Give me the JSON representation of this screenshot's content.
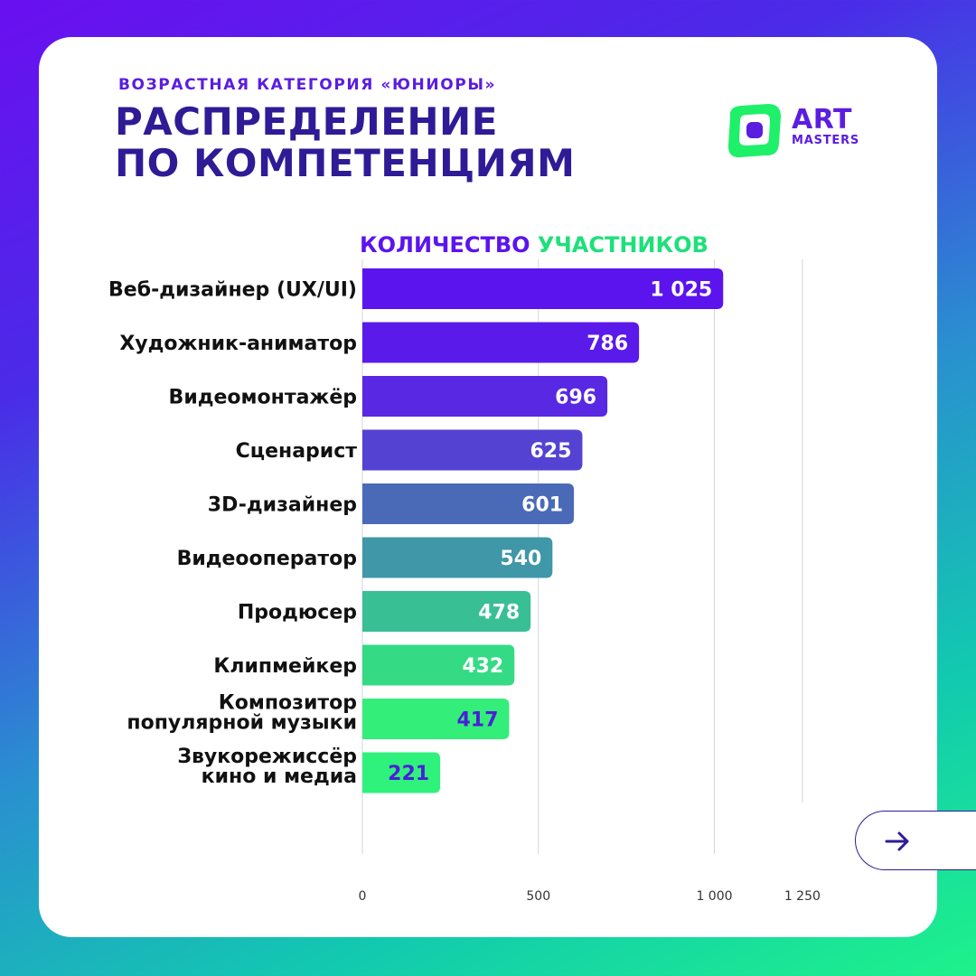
{
  "header": {
    "subtitle": "ВОЗРАСТНАЯ КАТЕГОРИЯ «ЮНИОРЫ»",
    "title_line1": "РАСПРЕДЕЛЕНИЕ",
    "title_line2": "ПО КОМПЕТЕНЦИЯМ"
  },
  "logo": {
    "word1": "ART",
    "word2": "MASTERS"
  },
  "chart_data": {
    "type": "bar",
    "orientation": "horizontal",
    "title_part1": "КОЛИЧЕСТВО",
    "title_part2": "УЧАСТНИКОВ",
    "categories": [
      [
        "Веб-дизайнер (UX/UI)"
      ],
      [
        "Художник-аниматор"
      ],
      [
        "Видеомонтажёр"
      ],
      [
        "Сценарист"
      ],
      [
        "3D-дизайнер"
      ],
      [
        "Видеооператор"
      ],
      [
        "Продюсер"
      ],
      [
        "Клипмейкер"
      ],
      [
        "Композитор",
        "популярной музыки"
      ],
      [
        "Звукорежиссёр",
        "кино и медиа"
      ]
    ],
    "values": [
      1025,
      786,
      696,
      625,
      601,
      540,
      478,
      432,
      417,
      221
    ],
    "value_labels": [
      "1 025",
      "786",
      "696",
      "625",
      "601",
      "540",
      "478",
      "432",
      "417",
      "221"
    ],
    "bar_colors": [
      "#5b14ee",
      "#5a1aea",
      "#5828e2",
      "#5443d2",
      "#4a6ab8",
      "#3f97a8",
      "#38bf94",
      "#34db84",
      "#34ee7a",
      "#2ef27c"
    ],
    "value_label_colors": [
      "#ffffff",
      "#ffffff",
      "#ffffff",
      "#ffffff",
      "#ffffff",
      "#ffffff",
      "#ffffff",
      "#ffffff",
      "#4a1ed8",
      "#4a1ed8"
    ],
    "ticks": [
      0,
      500,
      1000,
      1250
    ],
    "tick_labels": [
      "0",
      "500",
      "1 000",
      "1 250"
    ],
    "xlim": [
      0,
      1250
    ],
    "grid": true
  },
  "colors": {
    "title": "#2f1b96",
    "accent": "#5b1de0",
    "chart_title_gradient": [
      "#5b14ee",
      "#1ee07a"
    ],
    "logo_green": "#1ef06a"
  },
  "nav": {
    "next_icon": "arrow-right-icon"
  }
}
